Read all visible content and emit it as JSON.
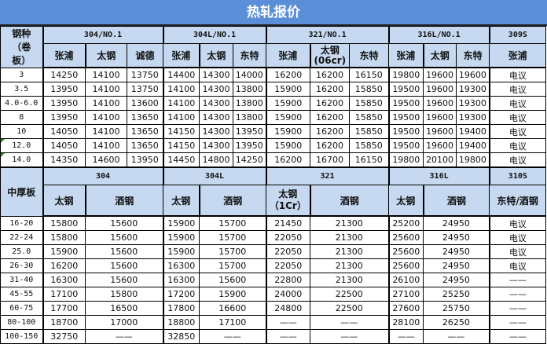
{
  "title": "热轧报价",
  "coil": {
    "corner": "钢种\n（卷\n板）",
    "groups": [
      "304/NO.1",
      "304L/NO.1",
      "321/NO.1",
      "316L/NO.1",
      "309S"
    ],
    "group_spans": [
      3,
      3,
      3,
      3,
      1
    ],
    "mills": [
      "张浦",
      "太钢",
      "诚德",
      "张浦",
      "太钢",
      "东特",
      "张浦",
      "太钢\n(06cr)",
      "东特",
      "张浦",
      "太钢",
      "东特",
      "张浦"
    ],
    "rows": [
      {
        "spec": "3",
        "v": [
          "14250",
          "14100",
          "13750",
          "14400",
          "14300",
          "14000",
          "16200",
          "16200",
          "16150",
          "19800",
          "19600",
          "19600",
          "电议"
        ]
      },
      {
        "spec": "3.5",
        "v": [
          "13950",
          "14100",
          "13750",
          "14100",
          "14300",
          "13800",
          "15900",
          "16200",
          "15850",
          "19500",
          "19600",
          "19300",
          "电议"
        ]
      },
      {
        "spec": "4.0-6.0",
        "v": [
          "13950",
          "14100",
          "13600",
          "14100",
          "14300",
          "13800",
          "15900",
          "16200",
          "15850",
          "19500",
          "19600",
          "19300",
          "电议"
        ]
      },
      {
        "spec": "8",
        "v": [
          "13950",
          "14100",
          "13650",
          "14100",
          "14300",
          "13800",
          "15900",
          "16200",
          "15850",
          "19500",
          "19600",
          "19300",
          "电议"
        ]
      },
      {
        "spec": "10",
        "v": [
          "14050",
          "14100",
          "13650",
          "14150",
          "14300",
          "13950",
          "15900",
          "16200",
          "15850",
          "19500",
          "19600",
          "19400",
          "电议"
        ]
      },
      {
        "spec": "12.0",
        "v": [
          "14050",
          "14100",
          "13650",
          "14150",
          "14300",
          "13950",
          "15900",
          "16200",
          "15850",
          "19500",
          "19600",
          "19400",
          "电议"
        ]
      },
      {
        "spec": "14.0",
        "v": [
          "14350",
          "14600",
          "13950",
          "14450",
          "14800",
          "14250",
          "16200",
          "16700",
          "16150",
          "19800",
          "20100",
          "19800",
          "电议"
        ]
      }
    ]
  },
  "plate": {
    "corner": "中厚板",
    "groups": [
      "304",
      "304L",
      "321",
      "316L",
      "310S"
    ],
    "mills": [
      "太钢",
      "酒钢",
      "太钢",
      "酒钢",
      "太钢\n（1Cr）",
      "酒钢",
      "太钢",
      "酒钢",
      "东特/酒钢"
    ],
    "rows": [
      {
        "spec": "16-20",
        "v": [
          "15800",
          "15600",
          "15900",
          "15700",
          "21450",
          "21300",
          "25200",
          "24950",
          "电议"
        ]
      },
      {
        "spec": "22-24",
        "v": [
          "15800",
          "15600",
          "15900",
          "15700",
          "22050",
          "21300",
          "25600",
          "24950",
          "电议"
        ]
      },
      {
        "spec": "25.0",
        "v": [
          "15900",
          "15600",
          "15900",
          "15700",
          "22050",
          "21300",
          "25600",
          "24950",
          "电议"
        ]
      },
      {
        "spec": "26-30",
        "v": [
          "16200",
          "15600",
          "16300",
          "15700",
          "22050",
          "21300",
          "25600",
          "24950",
          "电议"
        ]
      },
      {
        "spec": "31-40",
        "v": [
          "16300",
          "15600",
          "16300",
          "15600",
          "22800",
          "21300",
          "26100",
          "24950",
          "——"
        ]
      },
      {
        "spec": "45-55",
        "v": [
          "17100",
          "15800",
          "17200",
          "15900",
          "24000",
          "22500",
          "27100",
          "25250",
          "——"
        ]
      },
      {
        "spec": "60-75",
        "v": [
          "17700",
          "16500",
          "17800",
          "16600",
          "24800",
          "22500",
          "27600",
          "25750",
          "——"
        ]
      },
      {
        "spec": "80-100",
        "v": [
          "18700",
          "17000",
          "18800",
          "17100",
          "——",
          "——",
          "28100",
          "26250",
          "——"
        ]
      },
      {
        "spec": "100-150",
        "v": [
          "32750",
          "——",
          "32850",
          "——",
          "——",
          "——",
          "——",
          "——",
          "——"
        ]
      }
    ]
  },
  "colors": {
    "title_bg": "#5a8fd8",
    "header_bg": "#c6d9f0",
    "note_marker": "#1a8a2a"
  }
}
